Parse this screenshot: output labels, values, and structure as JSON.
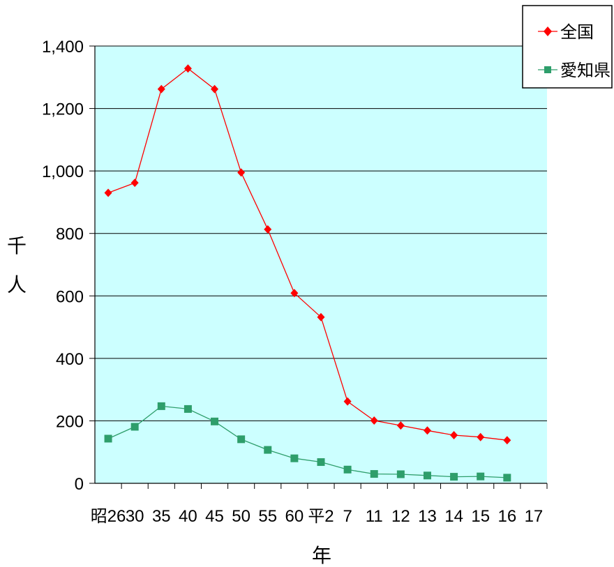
{
  "chart_data": {
    "type": "line",
    "categories": [
      "昭26",
      "30",
      "35",
      "40",
      "45",
      "50",
      "55",
      "60",
      "平2",
      "7",
      "11",
      "12",
      "13",
      "14",
      "15",
      "16",
      "17"
    ],
    "series": [
      {
        "name": "全国",
        "color": "#ff0000",
        "marker": "diamond",
        "values": [
          930,
          962,
          1262,
          1328,
          1262,
          995,
          813,
          609,
          532,
          262,
          201,
          185,
          169,
          154,
          148,
          138,
          null
        ]
      },
      {
        "name": "愛知県",
        "color": "#2e9e6b",
        "marker": "square",
        "values": [
          143,
          181,
          247,
          238,
          198,
          141,
          107,
          80,
          68,
          44,
          30,
          29,
          25,
          21,
          22,
          18,
          null
        ]
      }
    ],
    "ylim": [
      0,
      1400
    ],
    "yticks": [
      0,
      200,
      400,
      600,
      800,
      1000,
      1200,
      1400
    ],
    "ytick_labels": [
      "0",
      "200",
      "400",
      "600",
      "800",
      "1,000",
      "1,200",
      "1,400"
    ],
    "xlabel": "年",
    "ylabel": [
      "千",
      "人"
    ],
    "grid": true,
    "plot_background": "#ccffff",
    "legend_position": "top-right"
  }
}
